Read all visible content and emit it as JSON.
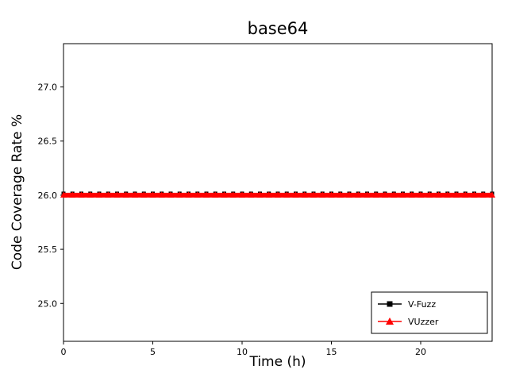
{
  "chart_data": {
    "type": "line",
    "title": "base64",
    "xlabel": "Time (h)",
    "ylabel": "Code Coverage Rate %",
    "xlim": [
      0,
      24
    ],
    "ylim": [
      24.65,
      27.4
    ],
    "xticks": [
      0,
      5,
      10,
      15,
      20
    ],
    "yticks": [
      25.0,
      25.5,
      26.0,
      26.5,
      27.0
    ],
    "grid": false,
    "legend_position": "lower right",
    "x": [
      0,
      0.5,
      1,
      1.5,
      2,
      2.5,
      3,
      3.5,
      4,
      4.5,
      5,
      5.5,
      6,
      6.5,
      7,
      7.5,
      8,
      8.5,
      9,
      9.5,
      10,
      10.5,
      11,
      11.5,
      12,
      12.5,
      13,
      13.5,
      14,
      14.5,
      15,
      15.5,
      16,
      16.5,
      17,
      17.5,
      18,
      18.5,
      19,
      19.5,
      20,
      20.5,
      21,
      21.5,
      22,
      22.5,
      23,
      23.5,
      24
    ],
    "series": [
      {
        "name": "V-Fuzz",
        "color": "#000000",
        "marker": "square",
        "values": [
          26.0,
          26.0,
          26.0,
          26.0,
          26.0,
          26.0,
          26.0,
          26.0,
          26.0,
          26.0,
          26.0,
          26.0,
          26.0,
          26.0,
          26.0,
          26.0,
          26.0,
          26.0,
          26.0,
          26.0,
          26.0,
          26.0,
          26.0,
          26.0,
          26.0,
          26.0,
          26.0,
          26.0,
          26.0,
          26.0,
          26.0,
          26.0,
          26.0,
          26.0,
          26.0,
          26.0,
          26.0,
          26.0,
          26.0,
          26.0,
          26.0,
          26.0,
          26.0,
          26.0,
          26.0,
          26.0,
          26.0,
          26.0,
          26.0
        ]
      },
      {
        "name": "VUzzer",
        "color": "#ff0000",
        "marker": "triangle",
        "values": [
          26.0,
          26.0,
          26.0,
          26.0,
          26.0,
          26.0,
          26.0,
          26.0,
          26.0,
          26.0,
          26.0,
          26.0,
          26.0,
          26.0,
          26.0,
          26.0,
          26.0,
          26.0,
          26.0,
          26.0,
          26.0,
          26.0,
          26.0,
          26.0,
          26.0,
          26.0,
          26.0,
          26.0,
          26.0,
          26.0,
          26.0,
          26.0,
          26.0,
          26.0,
          26.0,
          26.0,
          26.0,
          26.0,
          26.0,
          26.0,
          26.0,
          26.0,
          26.0,
          26.0,
          26.0,
          26.0,
          26.0,
          26.0,
          26.0
        ]
      }
    ]
  }
}
